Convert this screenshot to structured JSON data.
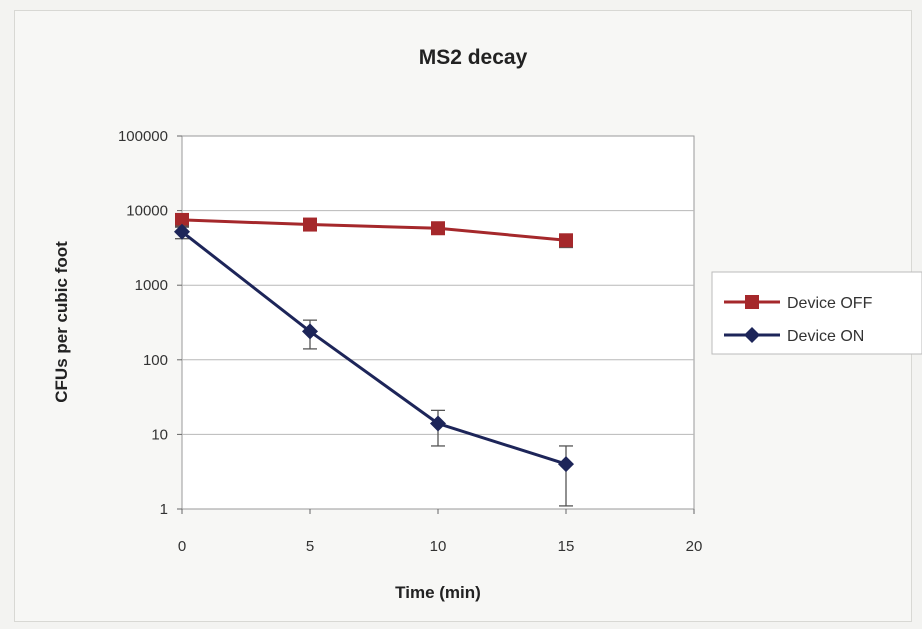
{
  "chart_data": {
    "type": "line",
    "title": "MS2 decay",
    "xlabel": "Time (min)",
    "ylabel": "CFUs per cubic foot",
    "xlim": [
      0,
      20
    ],
    "xticks": [
      "0",
      "5",
      "10",
      "15",
      "20"
    ],
    "ylim": [
      1,
      100000
    ],
    "yscale": "log",
    "yticks": [
      "1",
      "10",
      "100",
      "1000",
      "10000",
      "100000"
    ],
    "grid": "horizontal",
    "legend_position": "right",
    "series": [
      {
        "name": "Device OFF",
        "color": "#a5282b",
        "marker": "square",
        "x": [
          0,
          5,
          10,
          15
        ],
        "y": [
          7500,
          6500,
          5800,
          4000
        ],
        "err_low": [
          1500,
          1000,
          800,
          800
        ],
        "err_high": [
          1500,
          1000,
          800,
          800
        ]
      },
      {
        "name": "Device ON",
        "color": "#1d2559",
        "marker": "diamond",
        "x": [
          0,
          5,
          10,
          15
        ],
        "y": [
          5200,
          240,
          14,
          4
        ],
        "err_low": [
          1000,
          100,
          7,
          2.9
        ],
        "err_high": [
          1000,
          100,
          7,
          3
        ]
      }
    ]
  }
}
